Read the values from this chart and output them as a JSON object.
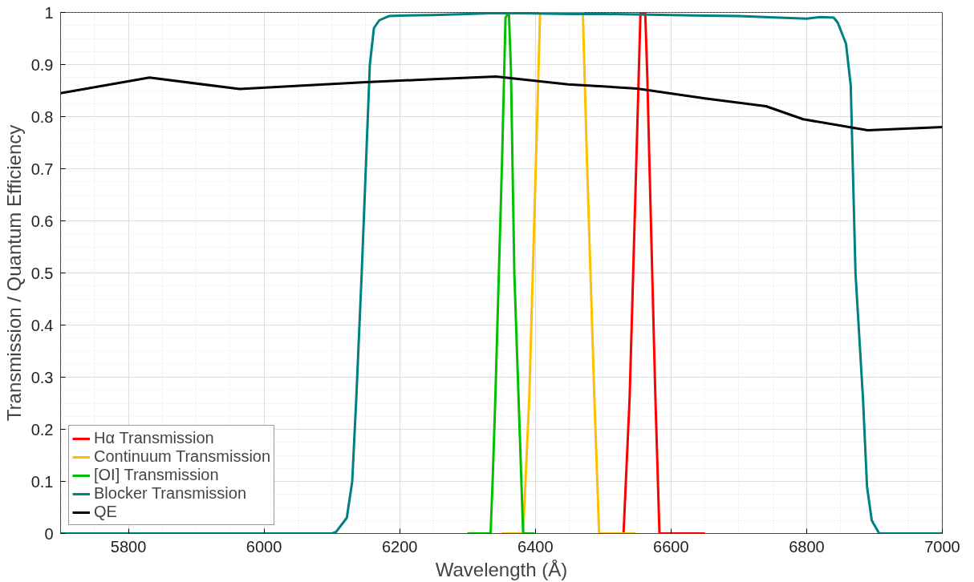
{
  "chart_data": {
    "type": "line",
    "xlabel": "Wavelength (Å)",
    "ylabel": "Transmission / Quantum Efficiency",
    "xlim": [
      5700,
      7000
    ],
    "ylim": [
      0,
      1
    ],
    "xticks": [
      5800,
      6000,
      6200,
      6400,
      6600,
      6800,
      7000
    ],
    "yticks": [
      0,
      0.1,
      0.2,
      0.3,
      0.4,
      0.5,
      0.6,
      0.7,
      0.8,
      0.9,
      1
    ],
    "grid": true,
    "legend": "bottom left",
    "line_style": "solid",
    "marker": "none",
    "series": [
      {
        "name": "Hα Transmission",
        "color": "#ff0000",
        "x": [
          6530,
          6539,
          6549,
          6555,
          6562,
          6565,
          6568,
          6577,
          6583,
          6650
        ],
        "values": [
          0,
          0.26,
          0.72,
          1.0,
          1.0,
          0.88,
          0.72,
          0.26,
          0,
          0
        ]
      },
      {
        "name": "Continuum Transmission",
        "color": "#ffbf00",
        "x": [
          6350,
          6382,
          6391,
          6401,
          6407,
          6440,
          6470,
          6476,
          6487,
          6494,
          6548
        ],
        "values": [
          0,
          0,
          0.26,
          0.72,
          1.0,
          1.0,
          1.0,
          0.72,
          0.26,
          0,
          0
        ]
      },
      {
        "name": "[OI] Transmission",
        "color": "#00c000",
        "x": [
          6300,
          6334,
          6337,
          6341,
          6351,
          6356,
          6361,
          6364,
          6369,
          6382,
          6399
        ],
        "values": [
          0,
          0,
          0.1,
          0.26,
          0.72,
          0.99,
          1.0,
          0.89,
          0.5,
          0,
          0
        ]
      },
      {
        "name": "Blocker Transmission",
        "color": "#008080",
        "x": [
          5700,
          6100,
          6106,
          6122,
          6130,
          6136,
          6144,
          6156,
          6162,
          6170,
          6184,
          6200,
          6250,
          6300,
          6340,
          6400,
          6450,
          6500,
          6550,
          6600,
          6650,
          6700,
          6760,
          6800,
          6820,
          6840,
          6846,
          6858,
          6865,
          6872,
          6883,
          6889,
          6896,
          6907,
          7000
        ],
        "values": [
          0,
          0,
          0.003,
          0.03,
          0.1,
          0.26,
          0.5,
          0.9,
          0.97,
          0.985,
          0.993,
          0.994,
          0.995,
          0.997,
          0.999,
          0.998,
          0.997,
          0.997,
          0.996,
          0.995,
          0.994,
          0.993,
          0.99,
          0.988,
          0.991,
          0.99,
          0.98,
          0.94,
          0.86,
          0.5,
          0.26,
          0.09,
          0.025,
          0,
          0
        ]
      },
      {
        "name": "QE",
        "color": "#000000",
        "x": [
          5700,
          5831,
          5964,
          6150,
          6250,
          6342,
          6448,
          6550,
          6650,
          6740,
          6795,
          6890,
          7000
        ],
        "values": [
          0.845,
          0.875,
          0.853,
          0.866,
          0.872,
          0.877,
          0.862,
          0.854,
          0.835,
          0.82,
          0.795,
          0.774,
          0.78
        ]
      }
    ]
  }
}
